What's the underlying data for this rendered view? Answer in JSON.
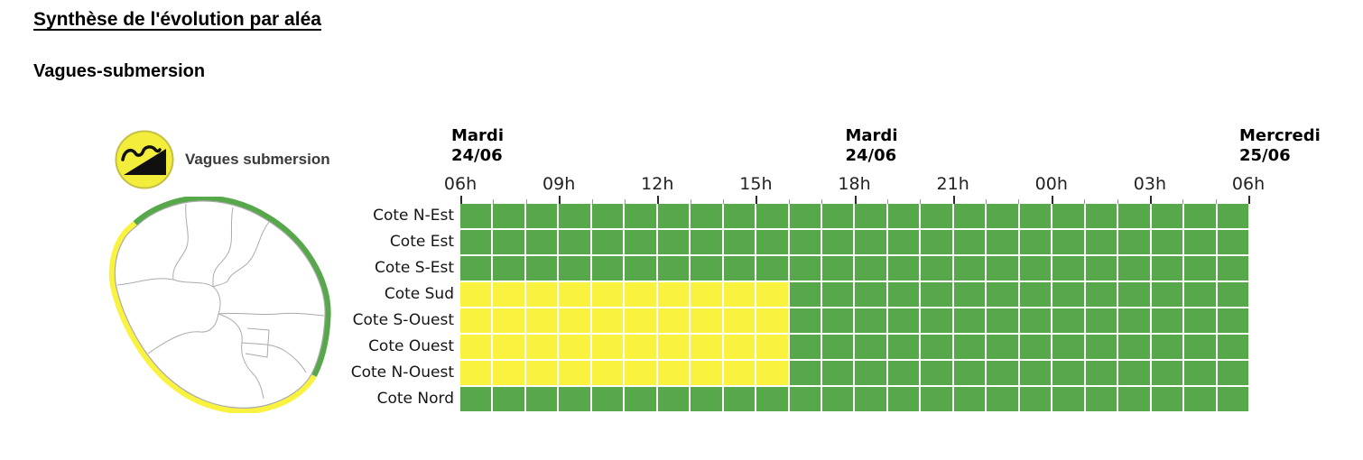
{
  "page": {
    "title": "Synthèse de l'évolution par aléa",
    "hazard_title": "Vagues-submersion"
  },
  "legend": {
    "icon": "vagues-submersion-icon",
    "label": "Vagues submersion"
  },
  "colors": {
    "green": "#57A84B",
    "yellow": "#F9F340",
    "icon_yellow": "#F2EE3B",
    "icon_ring": "#C4BF45",
    "map_line": "#ABABAB"
  },
  "map": {
    "region": "La Réunion",
    "north_east_coast_band": "green",
    "west_south_coast_band": "yellow"
  },
  "chart_data": {
    "type": "heatmap",
    "title": "Vagues submersion",
    "x_axis": {
      "day_headers": [
        {
          "label": "Mardi",
          "date": "24/06",
          "tick_index": 0
        },
        {
          "label": "Mardi",
          "date": "24/06",
          "tick_index": 4
        },
        {
          "label": "Mercredi",
          "date": "25/06",
          "tick_index": 8
        }
      ],
      "hour_ticks": [
        "06h",
        "09h",
        "12h",
        "15h",
        "18h",
        "21h",
        "00h",
        "03h",
        "06h"
      ],
      "hours_total": 24,
      "cell_hours": 1,
      "minor_tick_every_hours": 1,
      "major_tick_every_hours": 3
    },
    "categories": [
      "Cote N-Est",
      "Cote Est",
      "Cote S-Est",
      "Cote Sud",
      "Cote S-Ouest",
      "Cote Ouest",
      "Cote N-Ouest",
      "Cote Nord"
    ],
    "level_codes": {
      "g": "green",
      "y": "yellow"
    },
    "level_colors": {
      "green": "#57A84B",
      "yellow": "#F9F340"
    },
    "rows": [
      {
        "name": "Cote N-Est",
        "cells": "gggggggggggggggggggggggg"
      },
      {
        "name": "Cote Est",
        "cells": "gggggggggggggggggggggggg"
      },
      {
        "name": "Cote S-Est",
        "cells": "gggggggggggggggggggggggg"
      },
      {
        "name": "Cote Sud",
        "cells": "yyyyyyyyyygggggggggggggg"
      },
      {
        "name": "Cote S-Ouest",
        "cells": "yyyyyyyyyygggggggggggggg"
      },
      {
        "name": "Cote Ouest",
        "cells": "yyyyyyyyyygggggggggggggg"
      },
      {
        "name": "Cote N-Ouest",
        "cells": "yyyyyyyyyygggggggggggggg"
      },
      {
        "name": "Cote Nord",
        "cells": "gggggggggggggggggggggggg"
      }
    ]
  }
}
